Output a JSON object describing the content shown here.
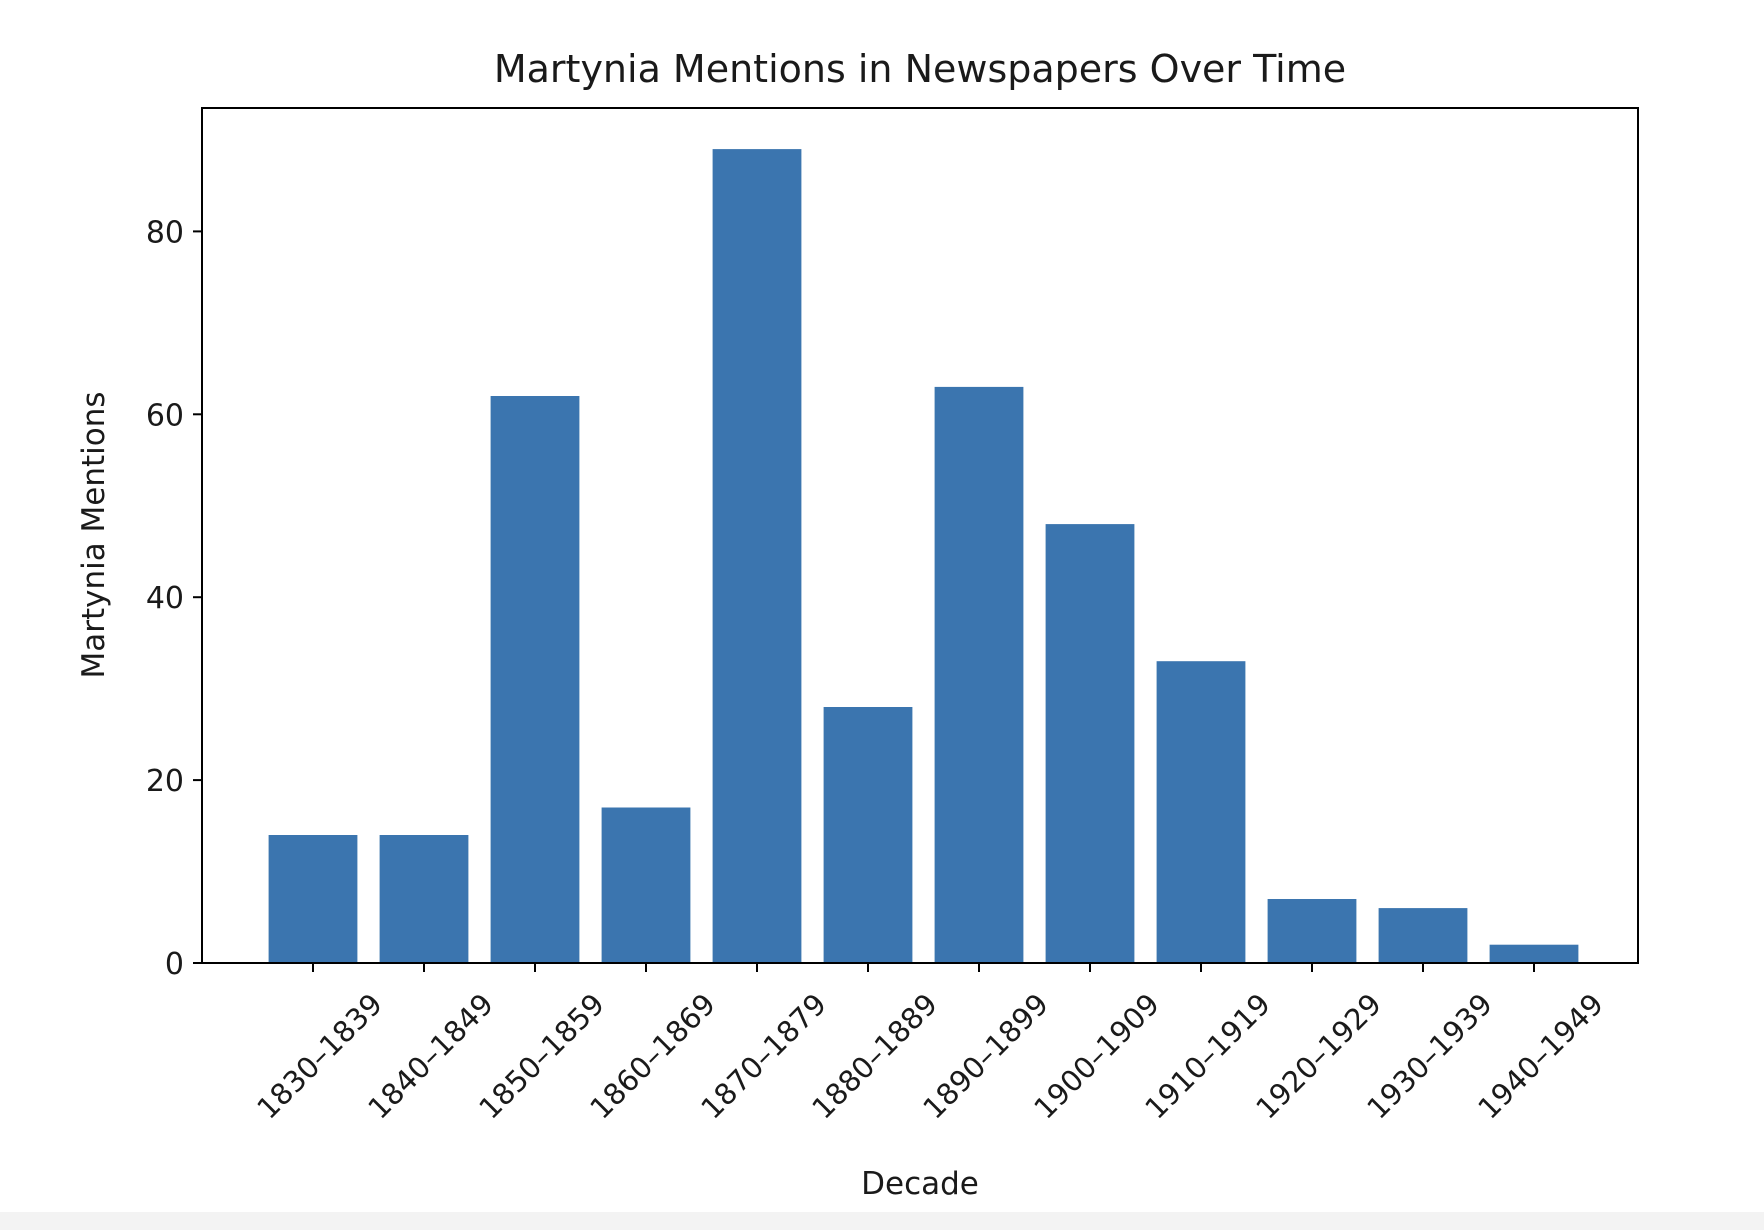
{
  "chart_data": {
    "type": "bar",
    "title": "Martynia Mentions in Newspapers Over Time",
    "xlabel": "Decade",
    "ylabel": "Martynia Mentions",
    "categories": [
      "1830–1839",
      "1840–1849",
      "1850–1859",
      "1860–1869",
      "1870–1879",
      "1880–1889",
      "1890–1899",
      "1900–1909",
      "1910–1919",
      "1920–1929",
      "1930–1939",
      "1940–1949"
    ],
    "values": [
      14,
      14,
      62,
      17,
      89,
      28,
      63,
      48,
      33,
      7,
      6,
      2
    ],
    "ylim": [
      0,
      93.5
    ],
    "yticks": [
      0,
      20,
      40,
      60,
      80
    ],
    "bar_color": "#3b75af",
    "grid": false,
    "legend": "none"
  }
}
